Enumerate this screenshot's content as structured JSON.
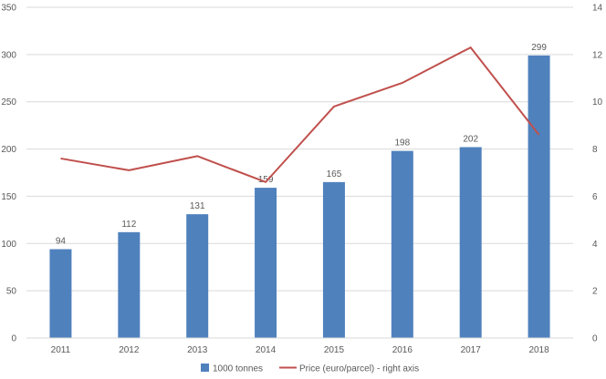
{
  "chart_data": {
    "type": "bar",
    "categories": [
      "2011",
      "2012",
      "2013",
      "2014",
      "2015",
      "2016",
      "2017",
      "2018"
    ],
    "series": [
      {
        "name": "1000 tonnes",
        "type": "bar",
        "axis": "left",
        "color": "#4f81bd",
        "values": [
          94,
          112,
          131,
          159,
          165,
          198,
          202,
          299
        ],
        "data_labels": [
          "94",
          "112",
          "131",
          "159",
          "165",
          "198",
          "202",
          "299"
        ]
      },
      {
        "name": "Price (euro/parcel) - right axis",
        "type": "line",
        "axis": "right",
        "color": "#c0504d",
        "values": [
          7.6,
          7.1,
          7.7,
          6.6,
          9.8,
          10.8,
          12.3,
          8.6
        ]
      }
    ],
    "y_left": {
      "ylim": [
        0,
        350
      ],
      "ticks": [
        "0",
        "50",
        "100",
        "150",
        "200",
        "250",
        "300",
        "350"
      ]
    },
    "y_right": {
      "ylim": [
        0,
        14
      ],
      "ticks": [
        "0",
        "2",
        "4",
        "6",
        "8",
        "10",
        "12",
        "14"
      ]
    },
    "title": "",
    "xlabel": "",
    "ylabel": "",
    "grid": "horizontal",
    "gridColor": "#d9d9d9",
    "legend": {
      "position": "bottom",
      "items": [
        "1000 tonnes",
        "Price (euro/parcel) - right axis"
      ]
    }
  }
}
